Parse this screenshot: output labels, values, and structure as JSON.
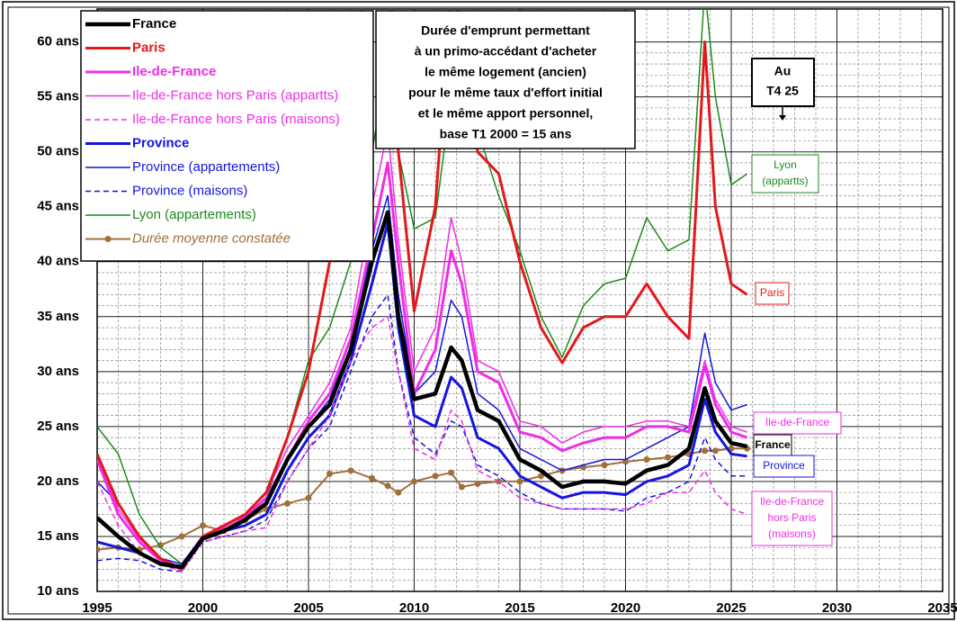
{
  "chart_data": {
    "type": "line",
    "x": [
      1995,
      1996,
      1997,
      1998,
      1999,
      2000,
      2001,
      2002,
      2003,
      2004,
      2005,
      2006,
      2007,
      2008,
      2008.75,
      2009.25,
      2010,
      2011,
      2011.75,
      2012.25,
      2013,
      2014,
      2015,
      2016,
      2017,
      2018,
      2019,
      2020,
      2021,
      2022,
      2023,
      2023.75,
      2024.25,
      2025,
      2025.75
    ],
    "xlim": [
      1995,
      2035
    ],
    "xticks": [
      1995,
      2000,
      2005,
      2010,
      2015,
      2020,
      2025,
      2030,
      2035
    ],
    "ylim": [
      10,
      63
    ],
    "yticks": [
      {
        "value": 10,
        "label": "10 ans"
      },
      {
        "value": 15,
        "label": "15 ans"
      },
      {
        "value": 20,
        "label": "20 ans"
      },
      {
        "value": 25,
        "label": "25 ans"
      },
      {
        "value": 30,
        "label": "30 ans"
      },
      {
        "value": 35,
        "label": "35 ans"
      },
      {
        "value": 40,
        "label": "40 ans"
      },
      {
        "value": 45,
        "label": "45 ans"
      },
      {
        "value": 50,
        "label": "50 ans"
      },
      {
        "value": 55,
        "label": "55 ans"
      },
      {
        "value": 60,
        "label": "60 ans"
      }
    ],
    "grid": true,
    "minor_grid": true,
    "legend": "top-left",
    "series": [
      {
        "name": "France",
        "color": "#000000",
        "width": 4.5,
        "values": [
          16.7,
          15,
          13.5,
          12.5,
          12.2,
          14.8,
          15.5,
          16.5,
          18,
          22,
          25,
          27,
          32,
          40,
          44.5,
          35,
          27.5,
          28,
          32.2,
          31,
          26.5,
          25.5,
          22,
          21,
          19.5,
          20,
          20,
          19.8,
          21,
          21.5,
          23,
          28.5,
          25.5,
          23.5,
          23.2
        ]
      },
      {
        "name": "Paris",
        "color": "#e4181b",
        "width": 3,
        "values": [
          22.5,
          18,
          15,
          13,
          12,
          15,
          16,
          17,
          19,
          24,
          30,
          40,
          55,
          70,
          70,
          50,
          35.5,
          45,
          65,
          62,
          50,
          48,
          40,
          34,
          30.8,
          34,
          35,
          35,
          38,
          35,
          33,
          60,
          45,
          38,
          37
        ]
      },
      {
        "name": "Ile-de-France",
        "color": "#ee2ee6",
        "width": 3,
        "values": [
          22,
          17,
          14.5,
          12.8,
          12,
          15,
          15.5,
          16.8,
          18.5,
          22,
          25.5,
          28,
          33,
          42,
          49,
          40,
          28,
          32,
          41,
          38,
          30,
          29,
          24.5,
          24,
          22.8,
          23.5,
          24,
          24,
          25,
          25,
          24.5,
          30.5,
          27,
          24.5,
          24
        ]
      },
      {
        "name": "Ile-de-France hors Paris (appartts)",
        "color": "#ee2ee6",
        "width": 1.5,
        "values": [
          22.5,
          17.5,
          14.8,
          13,
          12.2,
          15,
          15.8,
          17,
          19,
          23,
          26,
          29,
          34,
          45,
          52,
          42,
          30,
          34,
          44,
          40,
          31,
          30,
          25.5,
          25,
          23.5,
          24.5,
          25,
          25,
          25.5,
          25.5,
          25,
          31,
          27.5,
          25,
          24.5
        ]
      },
      {
        "name": "Ile-de-France hors Paris (maisons)",
        "color": "#ee2ee6",
        "width": 1.5,
        "dash": true,
        "values": [
          20,
          16,
          13.5,
          12.5,
          11.8,
          14.5,
          15,
          15.5,
          15.8,
          20,
          23,
          26,
          31,
          34,
          35,
          30,
          23,
          22,
          26.5,
          25.5,
          21,
          20,
          18.5,
          18,
          17.5,
          17.5,
          17.5,
          17.5,
          18,
          19,
          19,
          21,
          19,
          17.5,
          17
        ]
      },
      {
        "name": "Province",
        "color": "#1515e0",
        "width": 3,
        "values": [
          14.5,
          14,
          13.5,
          12.5,
          12.3,
          15,
          15.5,
          16,
          17,
          21,
          24,
          26,
          31,
          38,
          43.5,
          34,
          26,
          25,
          29.5,
          28.5,
          24,
          23,
          20.5,
          19.5,
          18.5,
          19,
          19,
          18.8,
          20,
          20.5,
          21.5,
          27.5,
          24.5,
          22.5,
          22.3
        ]
      },
      {
        "name": "Province (appartements)",
        "color": "#1515e0",
        "width": 1.5,
        "values": [
          20,
          18,
          15,
          13,
          12.5,
          15,
          15.5,
          16.5,
          18,
          22,
          25,
          27.5,
          33,
          41,
          46,
          37,
          28,
          30,
          36.5,
          35,
          28,
          26.5,
          23,
          22,
          21,
          21.5,
          22,
          22,
          23,
          24,
          25,
          33.5,
          29,
          26.5,
          27
        ]
      },
      {
        "name": "Province (maisons)",
        "color": "#1515e0",
        "width": 1.5,
        "dash": true,
        "values": [
          12.8,
          13,
          12.8,
          12,
          11.8,
          14.5,
          15,
          15.5,
          16.5,
          20,
          23,
          25,
          30,
          35,
          37,
          30,
          24,
          22.5,
          25.5,
          25,
          21.5,
          20.5,
          19,
          18,
          17.5,
          17.5,
          17.5,
          17.3,
          18.5,
          19,
          20,
          24,
          22,
          20.5,
          20.5
        ]
      },
      {
        "name": "Lyon (appartements)",
        "color": "#1e8a1e",
        "width": 1.5,
        "values": [
          25,
          22.5,
          17,
          14,
          12.5,
          15,
          15.5,
          16.5,
          18.5,
          24,
          31,
          34,
          40,
          50,
          58,
          50,
          43,
          44,
          55,
          55,
          52,
          46,
          41,
          35,
          31.3,
          36,
          38,
          38.5,
          44,
          41,
          42,
          65,
          55,
          47,
          48
        ]
      },
      {
        "name": "Durée moyenne constatée",
        "color": "#a0703a",
        "width": 2,
        "marker": true,
        "values": [
          13.8,
          14,
          13.8,
          14.2,
          15,
          16,
          15.5,
          16.5,
          17.5,
          18,
          18.5,
          20.7,
          21,
          20.3,
          19.6,
          19,
          20,
          20.5,
          20.8,
          19.5,
          19.8,
          20,
          20,
          20.5,
          21,
          21.3,
          21.5,
          21.8,
          22,
          22.2,
          22.5,
          22.8,
          22.8,
          23,
          23
        ]
      }
    ],
    "note_lines": [
      "Durée d'emprunt permettant",
      "à un primo-accédant d'acheter",
      "le même logement (ancien)",
      "pour le même taux d'effort initial",
      "et le même apport personnel,",
      "base T1 2000 = 15 ans"
    ],
    "date_box": [
      "Au",
      "T4 25"
    ],
    "end_labels": [
      {
        "lines": [
          "Lyon",
          "(appartts)"
        ],
        "color": "#1e8a1e"
      },
      {
        "lines": [
          "Paris"
        ],
        "color": "#e4181b"
      },
      {
        "lines": [
          "Ile-de-France"
        ],
        "color": "#ee2ee6"
      },
      {
        "lines": [
          "France"
        ],
        "color": "#000000"
      },
      {
        "lines": [
          "Province"
        ],
        "color": "#1515e0"
      },
      {
        "lines": [
          "Ile-de-France",
          "hors Paris",
          "(maisons)"
        ],
        "color": "#ee2ee6"
      }
    ]
  }
}
